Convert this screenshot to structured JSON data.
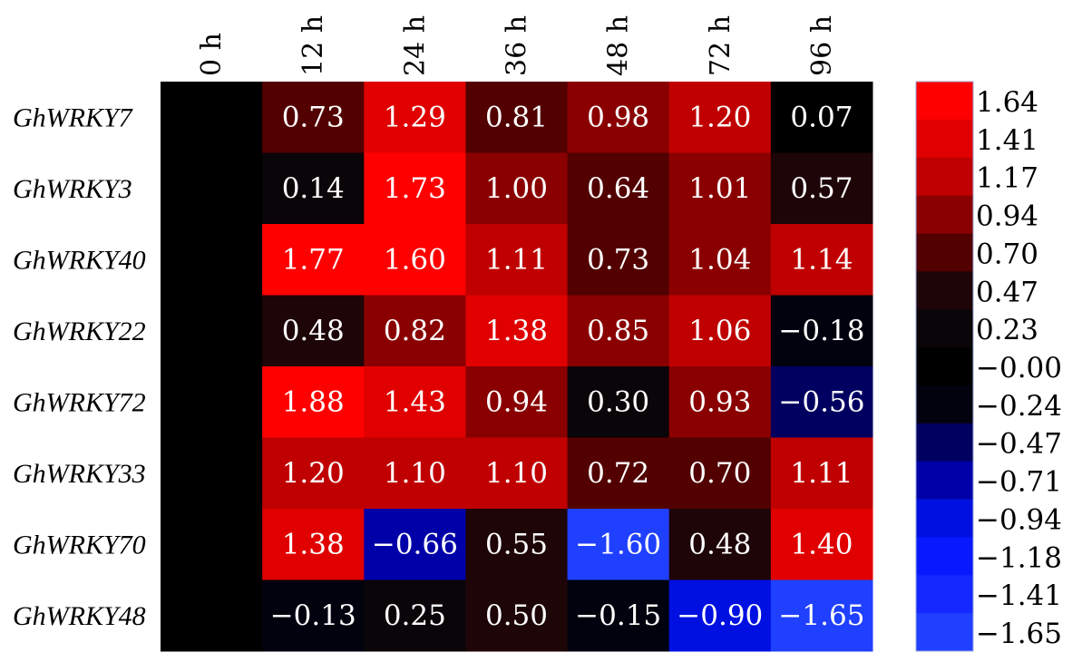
{
  "chart_data": {
    "type": "heatmap",
    "columns": [
      "0 h",
      "12 h",
      "24 h",
      "36 h",
      "48 h",
      "72 h",
      "96 h"
    ],
    "rows": [
      "GhWRKY7",
      "GhWRKY3",
      "GhWRKY40",
      "GhWRKY22",
      "GhWRKY72",
      "GhWRKY33",
      "GhWRKY70",
      "GhWRKY48"
    ],
    "values": [
      [
        0,
        0.73,
        1.29,
        0.81,
        0.98,
        1.2,
        0.07
      ],
      [
        0,
        0.14,
        1.73,
        1.0,
        0.64,
        1.01,
        0.57
      ],
      [
        0,
        1.77,
        1.6,
        1.11,
        0.73,
        1.04,
        1.14
      ],
      [
        0,
        0.48,
        0.82,
        1.38,
        0.85,
        1.06,
        -0.18
      ],
      [
        0,
        1.88,
        1.43,
        0.94,
        0.3,
        0.93,
        -0.56
      ],
      [
        0,
        1.2,
        1.1,
        1.1,
        0.72,
        0.7,
        1.11
      ],
      [
        0,
        1.38,
        -0.66,
        0.55,
        -1.6,
        0.48,
        1.4
      ],
      [
        0,
        -0.13,
        0.25,
        0.5,
        -0.15,
        -0.9,
        -1.65
      ]
    ],
    "value_labels": [
      [
        "",
        "0.73",
        "1.29",
        "0.81",
        "0.98",
        "1.20",
        "0.07"
      ],
      [
        "",
        "0.14",
        "1.73",
        "1.00",
        "0.64",
        "1.01",
        "0.57"
      ],
      [
        "",
        "1.77",
        "1.60",
        "1.11",
        "0.73",
        "1.04",
        "1.14"
      ],
      [
        "",
        "0.48",
        "0.82",
        "1.38",
        "0.85",
        "1.06",
        "−0.18"
      ],
      [
        "",
        "1.88",
        "1.43",
        "0.94",
        "0.30",
        "0.93",
        "−0.56"
      ],
      [
        "",
        "1.20",
        "1.10",
        "1.10",
        "0.72",
        "0.70",
        "1.11"
      ],
      [
        "",
        "1.38",
        "−0.66",
        "0.55",
        "−1.60",
        "0.48",
        "1.40"
      ],
      [
        "",
        "−0.13",
        "0.25",
        "0.50",
        "−0.15",
        "−0.90",
        "−1.65"
      ]
    ],
    "colorbar": {
      "labels": [
        "1.64",
        "1.41",
        "1.17",
        "0.94",
        "0.70",
        "0.47",
        "0.23",
        "−0.00",
        "−0.24",
        "−0.47",
        "−0.71",
        "−0.94",
        "−1.18",
        "−1.41",
        "−1.65"
      ],
      "values": [
        1.64,
        1.41,
        1.17,
        0.94,
        0.7,
        0.47,
        0.23,
        0,
        -0.24,
        -0.47,
        -0.71,
        -0.94,
        -1.18,
        -1.41,
        -1.65
      ],
      "colors": [
        "#ff0000",
        "#e00000",
        "#c00000",
        "#8a0000",
        "#520000",
        "#1e0508",
        "#0a0508",
        "#000000",
        "#02020f",
        "#000060",
        "#0000a8",
        "#0010e0",
        "#0818ff",
        "#1428ff",
        "#2040ff"
      ]
    },
    "colormap": "blue-black-red",
    "range": [
      -1.65,
      1.88
    ]
  }
}
